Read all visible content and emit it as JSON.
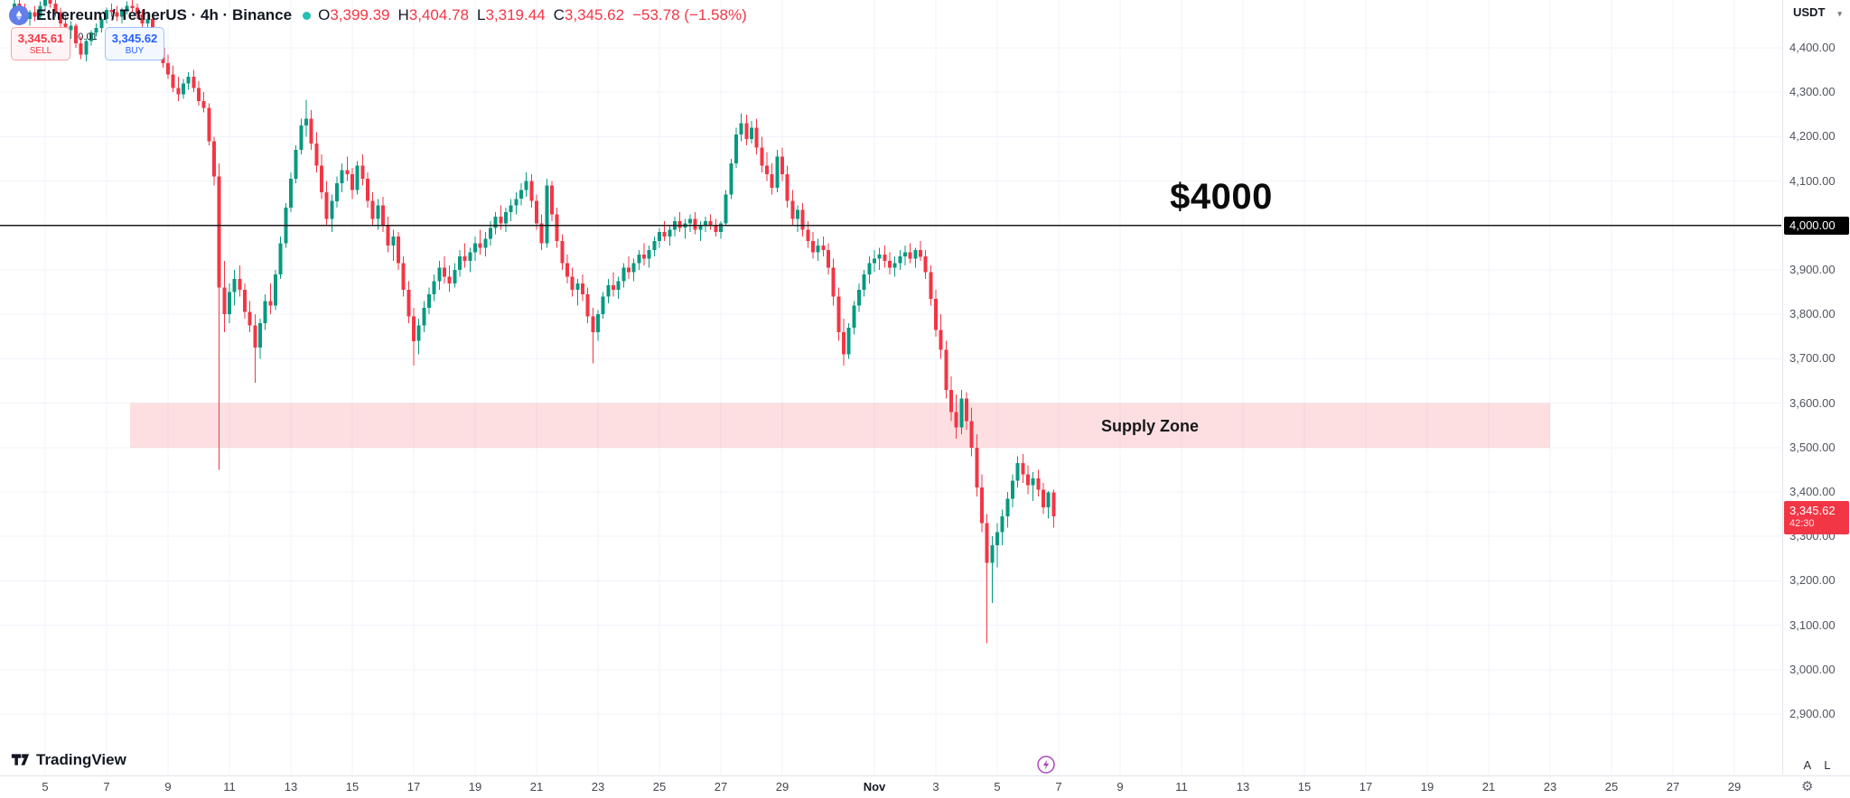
{
  "header": {
    "title": "Ethereum / TetherUS · 4h · Binance",
    "o_label": "O",
    "o_value": "3,399.39",
    "h_label": "H",
    "h_value": "3,404.78",
    "l_label": "L",
    "l_value": "3,319.44",
    "c_label": "C",
    "c_value": "3,345.62",
    "change_value": "−53.78 (−1.58%)"
  },
  "order_panel": {
    "sell_price": "3,345.61",
    "sell_label": "SELL",
    "spread": "0.01",
    "buy_price": "3,345.62",
    "buy_label": "BUY",
    "sell_color": "#f23645",
    "buy_color": "#2962ff"
  },
  "annotations": {
    "level_label": "$4000",
    "level_price": 4000,
    "zone_label": "Supply Zone",
    "zone_top_price": 3600,
    "zone_bottom_price": 3500
  },
  "price_axis": {
    "quote_currency": "USDT",
    "ticks": [
      {
        "price": 4400,
        "label": "4,400.00"
      },
      {
        "price": 4300,
        "label": "4,300.00"
      },
      {
        "price": 4200,
        "label": "4,200.00"
      },
      {
        "price": 4100,
        "label": "4,100.00"
      },
      {
        "price": 4000,
        "label": "4,000.00"
      },
      {
        "price": 3900,
        "label": "3,900.00"
      },
      {
        "price": 3800,
        "label": "3,800.00"
      },
      {
        "price": 3700,
        "label": "3,700.00"
      },
      {
        "price": 3600,
        "label": "3,600.00"
      },
      {
        "price": 3500,
        "label": "3,500.00"
      },
      {
        "price": 3400,
        "label": "3,400.00"
      },
      {
        "price": 3300,
        "label": "3,300.00"
      },
      {
        "price": 3200,
        "label": "3,200.00"
      },
      {
        "price": 3100,
        "label": "3,100.00"
      },
      {
        "price": 3000,
        "label": "3,000.00"
      },
      {
        "price": 2900,
        "label": "2,900.00"
      }
    ],
    "level_tag": {
      "label": "4,000.00",
      "price": 4000
    },
    "last_price_tag": {
      "label": "3,345.62",
      "countdown": "42:30",
      "price": 3345.62
    },
    "scale_buttons": {
      "auto": "A",
      "log": "L"
    }
  },
  "time_axis": {
    "labels": [
      {
        "text": "5",
        "day_index": 0
      },
      {
        "text": "7",
        "day_index": 2
      },
      {
        "text": "9",
        "day_index": 4
      },
      {
        "text": "11",
        "day_index": 6
      },
      {
        "text": "13",
        "day_index": 8
      },
      {
        "text": "15",
        "day_index": 10
      },
      {
        "text": "17",
        "day_index": 12
      },
      {
        "text": "19",
        "day_index": 14
      },
      {
        "text": "21",
        "day_index": 16
      },
      {
        "text": "23",
        "day_index": 18
      },
      {
        "text": "25",
        "day_index": 20
      },
      {
        "text": "27",
        "day_index": 22
      },
      {
        "text": "29",
        "day_index": 24
      },
      {
        "text": "Nov",
        "day_index": 27,
        "bold": true
      },
      {
        "text": "3",
        "day_index": 29
      },
      {
        "text": "5",
        "day_index": 31
      },
      {
        "text": "7",
        "day_index": 33
      },
      {
        "text": "9",
        "day_index": 35
      },
      {
        "text": "11",
        "day_index": 37
      },
      {
        "text": "13",
        "day_index": 39
      },
      {
        "text": "15",
        "day_index": 41
      },
      {
        "text": "17",
        "day_index": 43
      },
      {
        "text": "19",
        "day_index": 45
      },
      {
        "text": "21",
        "day_index": 47
      },
      {
        "text": "23",
        "day_index": 49
      },
      {
        "text": "25",
        "day_index": 51
      },
      {
        "text": "27",
        "day_index": 53
      },
      {
        "text": "29",
        "day_index": 55
      }
    ]
  },
  "footer": {
    "brand": "TradingView"
  },
  "chart_data": {
    "type": "candlestick",
    "symbol": "Ethereum / TetherUS",
    "exchange": "Binance",
    "interval": "4h",
    "first_candle": "Oct 4, 00:00",
    "candles_per_day": 6,
    "ohlc_format": "[open, high, low, close] in USDT, values estimated from chart",
    "visible_price_range": [
      2760,
      4510
    ],
    "colors": {
      "up": "#089981",
      "down": "#f23645",
      "zone_fill": "rgba(242,54,69,0.16)",
      "level_line": "#1c1c1c"
    },
    "candles": [
      [
        4480,
        4510,
        4465,
        4500
      ],
      [
        4500,
        4515,
        4480,
        4490
      ],
      [
        4490,
        4500,
        4455,
        4465
      ],
      [
        4465,
        4485,
        4450,
        4480
      ],
      [
        4480,
        4495,
        4460,
        4470
      ],
      [
        4470,
        4505,
        4465,
        4495
      ],
      [
        4495,
        4520,
        4485,
        4510
      ],
      [
        4510,
        4525,
        4490,
        4500
      ],
      [
        4500,
        4510,
        4470,
        4480
      ],
      [
        4480,
        4490,
        4445,
        4455
      ],
      [
        4455,
        4470,
        4430,
        4440
      ],
      [
        4440,
        4460,
        4420,
        4450
      ],
      [
        4450,
        4455,
        4400,
        4410
      ],
      [
        4410,
        4425,
        4375,
        4385
      ],
      [
        4385,
        4420,
        4370,
        4415
      ],
      [
        4415,
        4440,
        4405,
        4435
      ],
      [
        4435,
        4455,
        4425,
        4445
      ],
      [
        4445,
        4470,
        4435,
        4465
      ],
      [
        4465,
        4490,
        4455,
        4485
      ],
      [
        4485,
        4500,
        4470,
        4480
      ],
      [
        4480,
        4495,
        4460,
        4470
      ],
      [
        4470,
        4490,
        4455,
        4485
      ],
      [
        4485,
        4505,
        4475,
        4495
      ],
      [
        4495,
        4510,
        4480,
        4490
      ],
      [
        4490,
        4500,
        4465,
        4475
      ],
      [
        4475,
        4485,
        4445,
        4455
      ],
      [
        4455,
        4475,
        4440,
        4465
      ],
      [
        4465,
        4470,
        4420,
        4430
      ],
      [
        4430,
        4445,
        4390,
        4400
      ],
      [
        4400,
        4415,
        4355,
        4365
      ],
      [
        4365,
        4385,
        4330,
        4340
      ],
      [
        4340,
        4360,
        4300,
        4310
      ],
      [
        4310,
        4335,
        4280,
        4295
      ],
      [
        4295,
        4330,
        4285,
        4320
      ],
      [
        4320,
        4345,
        4305,
        4335
      ],
      [
        4335,
        4350,
        4300,
        4310
      ],
      [
        4310,
        4325,
        4270,
        4280
      ],
      [
        4280,
        4300,
        4255,
        4265
      ],
      [
        4265,
        4275,
        4180,
        4190
      ],
      [
        4190,
        4200,
        4090,
        4110
      ],
      [
        4110,
        4140,
        3450,
        3860
      ],
      [
        3860,
        3920,
        3760,
        3800
      ],
      [
        3800,
        3870,
        3780,
        3850
      ],
      [
        3850,
        3900,
        3820,
        3880
      ],
      [
        3880,
        3910,
        3840,
        3855
      ],
      [
        3855,
        3870,
        3790,
        3805
      ],
      [
        3805,
        3830,
        3760,
        3775
      ],
      [
        3775,
        3800,
        3646,
        3725
      ],
      [
        3725,
        3790,
        3700,
        3780
      ],
      [
        3780,
        3845,
        3765,
        3830
      ],
      [
        3830,
        3870,
        3800,
        3820
      ],
      [
        3820,
        3900,
        3810,
        3890
      ],
      [
        3890,
        3975,
        3880,
        3960
      ],
      [
        3960,
        4050,
        3950,
        4040
      ],
      [
        4040,
        4120,
        4030,
        4105
      ],
      [
        4105,
        4180,
        4095,
        4170
      ],
      [
        4170,
        4240,
        4160,
        4225
      ],
      [
        4225,
        4283,
        4200,
        4240
      ],
      [
        4240,
        4260,
        4170,
        4185
      ],
      [
        4185,
        4210,
        4120,
        4135
      ],
      [
        4135,
        4160,
        4060,
        4075
      ],
      [
        4075,
        4100,
        4000,
        4015
      ],
      [
        4015,
        4070,
        3985,
        4055
      ],
      [
        4055,
        4110,
        4040,
        4095
      ],
      [
        4095,
        4140,
        4075,
        4125
      ],
      [
        4125,
        4155,
        4100,
        4115
      ],
      [
        4115,
        4130,
        4060,
        4080
      ],
      [
        4080,
        4145,
        4070,
        4135
      ],
      [
        4135,
        4160,
        4090,
        4105
      ],
      [
        4105,
        4120,
        4040,
        4055
      ],
      [
        4055,
        4075,
        4000,
        4015
      ],
      [
        4015,
        4060,
        3990,
        4045
      ],
      [
        4045,
        4065,
        3985,
        4000
      ],
      [
        4000,
        4020,
        3940,
        3955
      ],
      [
        3955,
        3990,
        3920,
        3975
      ],
      [
        3975,
        3985,
        3900,
        3915
      ],
      [
        3915,
        3930,
        3840,
        3855
      ],
      [
        3855,
        3875,
        3780,
        3795
      ],
      [
        3795,
        3815,
        3685,
        3740
      ],
      [
        3740,
        3790,
        3710,
        3775
      ],
      [
        3775,
        3830,
        3760,
        3815
      ],
      [
        3815,
        3860,
        3800,
        3845
      ],
      [
        3845,
        3890,
        3830,
        3875
      ],
      [
        3875,
        3920,
        3855,
        3905
      ],
      [
        3905,
        3930,
        3870,
        3885
      ],
      [
        3885,
        3910,
        3850,
        3870
      ],
      [
        3870,
        3915,
        3860,
        3900
      ],
      [
        3900,
        3945,
        3885,
        3930
      ],
      [
        3930,
        3960,
        3905,
        3920
      ],
      [
        3920,
        3950,
        3895,
        3940
      ],
      [
        3940,
        3975,
        3920,
        3960
      ],
      [
        3960,
        3990,
        3935,
        3950
      ],
      [
        3950,
        3985,
        3930,
        3970
      ],
      [
        3970,
        4010,
        3955,
        3995
      ],
      [
        3995,
        4030,
        3980,
        4020
      ],
      [
        4020,
        4045,
        3990,
        4005
      ],
      [
        4005,
        4040,
        3985,
        4030
      ],
      [
        4030,
        4060,
        4010,
        4045
      ],
      [
        4045,
        4075,
        4025,
        4060
      ],
      [
        4060,
        4095,
        4045,
        4080
      ],
      [
        4080,
        4120,
        4065,
        4100
      ],
      [
        4100,
        4115,
        4040,
        4055
      ],
      [
        4055,
        4070,
        3990,
        4005
      ],
      [
        4005,
        4025,
        3945,
        3960
      ],
      [
        3960,
        4105,
        3950,
        4090
      ],
      [
        4090,
        4100,
        4010,
        4025
      ],
      [
        4025,
        4040,
        3950,
        3965
      ],
      [
        3965,
        3980,
        3900,
        3915
      ],
      [
        3915,
        3935,
        3870,
        3885
      ],
      [
        3885,
        3905,
        3840,
        3855
      ],
      [
        3855,
        3880,
        3820,
        3870
      ],
      [
        3870,
        3890,
        3830,
        3845
      ],
      [
        3845,
        3860,
        3780,
        3795
      ],
      [
        3795,
        3815,
        3690,
        3760
      ],
      [
        3760,
        3810,
        3740,
        3800
      ],
      [
        3800,
        3850,
        3790,
        3840
      ],
      [
        3840,
        3880,
        3825,
        3865
      ],
      [
        3865,
        3895,
        3840,
        3855
      ],
      [
        3855,
        3885,
        3835,
        3875
      ],
      [
        3875,
        3915,
        3860,
        3905
      ],
      [
        3905,
        3930,
        3880,
        3895
      ],
      [
        3895,
        3925,
        3875,
        3915
      ],
      [
        3915,
        3945,
        3900,
        3935
      ],
      [
        3935,
        3960,
        3910,
        3925
      ],
      [
        3925,
        3955,
        3905,
        3945
      ],
      [
        3945,
        3975,
        3930,
        3965
      ],
      [
        3965,
        3995,
        3950,
        3985
      ],
      [
        3985,
        4010,
        3965,
        3975
      ],
      [
        3975,
        4000,
        3955,
        3990
      ],
      [
        3990,
        4020,
        3975,
        4010
      ],
      [
        4010,
        4030,
        3985,
        3995
      ],
      [
        3995,
        4015,
        3970,
        4005
      ],
      [
        4005,
        4025,
        3985,
        4015
      ],
      [
        4015,
        4030,
        3980,
        3990
      ],
      [
        3990,
        4010,
        3965,
        4000
      ],
      [
        4000,
        4020,
        3985,
        4010
      ],
      [
        4010,
        4025,
        3990,
        4000
      ],
      [
        4000,
        4015,
        3975,
        3985
      ],
      [
        3985,
        4010,
        3970,
        4005
      ],
      [
        4005,
        4080,
        4000,
        4070
      ],
      [
        4070,
        4150,
        4060,
        4140
      ],
      [
        4140,
        4220,
        4130,
        4205
      ],
      [
        4205,
        4253,
        4190,
        4230
      ],
      [
        4230,
        4250,
        4180,
        4195
      ],
      [
        4195,
        4235,
        4185,
        4220
      ],
      [
        4220,
        4240,
        4160,
        4175
      ],
      [
        4175,
        4200,
        4120,
        4135
      ],
      [
        4135,
        4165,
        4100,
        4115
      ],
      [
        4115,
        4140,
        4070,
        4085
      ],
      [
        4085,
        4170,
        4075,
        4155
      ],
      [
        4155,
        4175,
        4100,
        4115
      ],
      [
        4115,
        4135,
        4040,
        4055
      ],
      [
        4055,
        4080,
        4000,
        4015
      ],
      [
        4015,
        4045,
        3985,
        4035
      ],
      [
        4035,
        4050,
        3975,
        3990
      ],
      [
        3990,
        4010,
        3950,
        3965
      ],
      [
        3965,
        3985,
        3925,
        3940
      ],
      [
        3940,
        3970,
        3920,
        3955
      ],
      [
        3955,
        3975,
        3930,
        3945
      ],
      [
        3945,
        3960,
        3890,
        3905
      ],
      [
        3905,
        3925,
        3820,
        3840
      ],
      [
        3840,
        3860,
        3740,
        3760
      ],
      [
        3760,
        3790,
        3685,
        3710
      ],
      [
        3710,
        3780,
        3700,
        3770
      ],
      [
        3770,
        3830,
        3755,
        3820
      ],
      [
        3820,
        3870,
        3805,
        3855
      ],
      [
        3855,
        3900,
        3840,
        3890
      ],
      [
        3890,
        3930,
        3870,
        3915
      ],
      [
        3915,
        3945,
        3895,
        3925
      ],
      [
        3925,
        3950,
        3900,
        3935
      ],
      [
        3935,
        3955,
        3905,
        3920
      ],
      [
        3920,
        3940,
        3890,
        3905
      ],
      [
        3905,
        3930,
        3885,
        3915
      ],
      [
        3915,
        3945,
        3900,
        3930
      ],
      [
        3930,
        3955,
        3910,
        3940
      ],
      [
        3940,
        3960,
        3915,
        3925
      ],
      [
        3925,
        3950,
        3905,
        3945
      ],
      [
        3945,
        3965,
        3920,
        3930
      ],
      [
        3930,
        3945,
        3880,
        3895
      ],
      [
        3895,
        3910,
        3820,
        3835
      ],
      [
        3835,
        3855,
        3750,
        3765
      ],
      [
        3765,
        3800,
        3700,
        3720
      ],
      [
        3720,
        3740,
        3610,
        3630
      ],
      [
        3630,
        3660,
        3560,
        3580
      ],
      [
        3580,
        3620,
        3520,
        3545
      ],
      [
        3545,
        3630,
        3530,
        3610
      ],
      [
        3610,
        3625,
        3540,
        3560
      ],
      [
        3560,
        3590,
        3480,
        3500
      ],
      [
        3500,
        3530,
        3390,
        3410
      ],
      [
        3410,
        3440,
        3310,
        3330
      ],
      [
        3330,
        3350,
        3060,
        3240
      ],
      [
        3240,
        3300,
        3150,
        3280
      ],
      [
        3280,
        3330,
        3230,
        3310
      ],
      [
        3310,
        3360,
        3280,
        3345
      ],
      [
        3345,
        3400,
        3320,
        3385
      ],
      [
        3385,
        3440,
        3365,
        3425
      ],
      [
        3425,
        3480,
        3410,
        3465
      ],
      [
        3465,
        3485,
        3420,
        3440
      ],
      [
        3440,
        3460,
        3395,
        3415
      ],
      [
        3415,
        3445,
        3380,
        3430
      ],
      [
        3430,
        3450,
        3390,
        3405
      ],
      [
        3405,
        3420,
        3350,
        3365
      ],
      [
        3365,
        3402,
        3340,
        3399.39
      ],
      [
        3399.39,
        3404.78,
        3319.44,
        3345.62
      ]
    ]
  }
}
